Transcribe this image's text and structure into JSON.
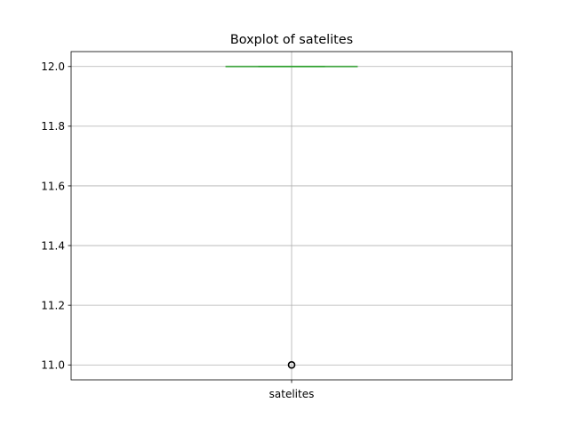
{
  "chart_data": {
    "type": "boxplot",
    "title": "Boxplot of satelites",
    "xlabel": "",
    "ylabel": "",
    "categories": [
      "satelites"
    ],
    "boxes": [
      {
        "name": "satelites",
        "q1": 12.0,
        "median": 12.0,
        "q3": 12.0,
        "whisker_low": 12.0,
        "whisker_high": 12.0,
        "outliers": [
          11.0
        ]
      }
    ],
    "ylim": [
      10.95,
      12.05
    ],
    "yticks": [
      11.0,
      11.2,
      11.4,
      11.6,
      11.8,
      12.0
    ],
    "ytick_labels": [
      "11.0",
      "11.2",
      "11.4",
      "11.6",
      "11.8",
      "12.0"
    ],
    "grid": true,
    "colors": {
      "box": "#1f77b4",
      "median": "#2ca02c",
      "whisker": "#1f77b4",
      "cap": "#2ca02c",
      "outlier": "#000000",
      "grid": "#b0b0b0",
      "axes": "#000000"
    }
  }
}
